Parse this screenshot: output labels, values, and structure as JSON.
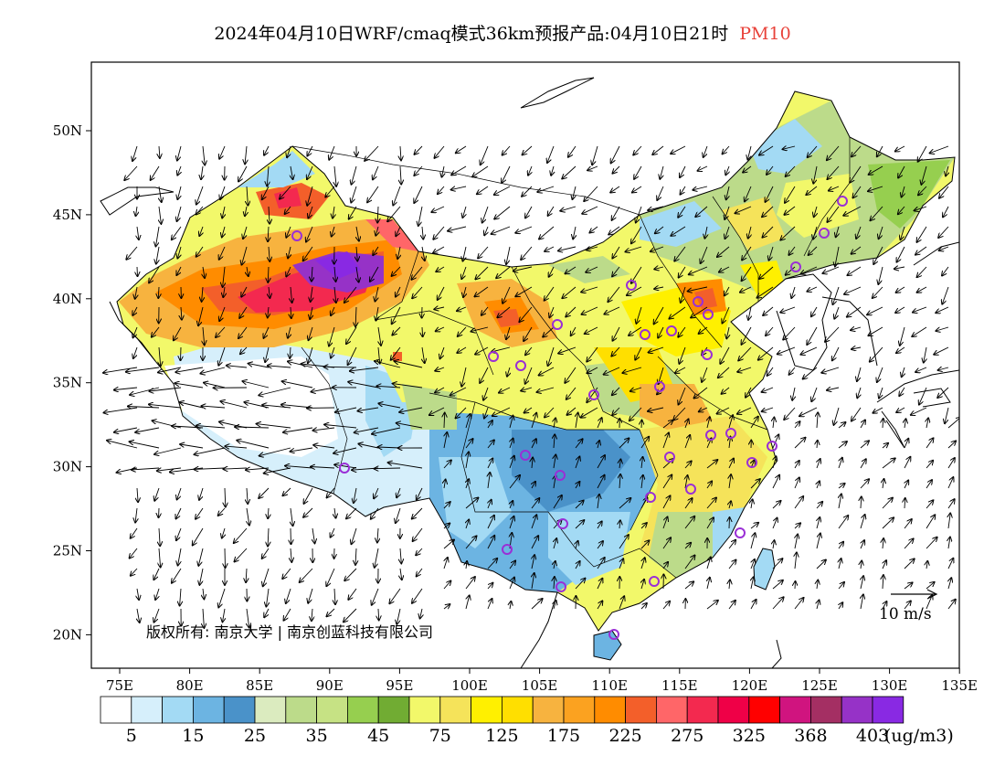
{
  "title": {
    "main": "2024年04月10日WRF/cmaq模式36km预报产品:04月10日21时",
    "species": "PM10"
  },
  "map": {
    "lon_ticks": [
      "75E",
      "80E",
      "85E",
      "90E",
      "95E",
      "100E",
      "105E",
      "110E",
      "115E",
      "120E",
      "125E",
      "130E",
      "135E"
    ],
    "lat_ticks": [
      "50N",
      "45N",
      "40N",
      "35N",
      "30N",
      "25N",
      "20N"
    ],
    "copyright": "版权所有: 南京大学 | 南京创蓝科技有限公司",
    "wind_reference": "10 m/s"
  },
  "colorbar": {
    "colors": [
      "#ffffff",
      "#d6effb",
      "#a3daf4",
      "#6cb4e2",
      "#4a92c9",
      "#dbebbf",
      "#bcdb8a",
      "#c6e284",
      "#96cf4f",
      "#71ac33",
      "#f2f86a",
      "#f5e35a",
      "#fff000",
      "#ffdf00",
      "#f7b33f",
      "#fba220",
      "#ff8c00",
      "#f35f2a",
      "#ff6668",
      "#f3294f",
      "#ef0047",
      "#ff0000",
      "#d0147f",
      "#a42f63",
      "#9632c7",
      "#8929e3"
    ],
    "labels": [
      "5",
      "15",
      "25",
      "35",
      "45",
      "75",
      "125",
      "175",
      "225",
      "275",
      "325",
      "368",
      "403"
    ],
    "unit": "(ug/m3)"
  }
}
